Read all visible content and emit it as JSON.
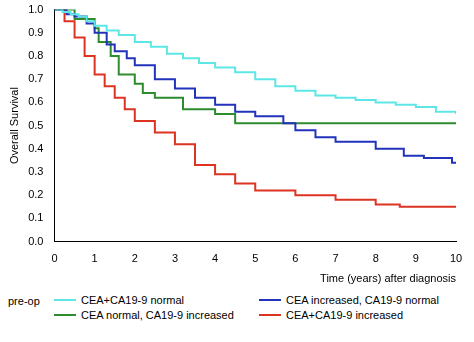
{
  "chart_data": {
    "type": "line",
    "x_label": "Time (years) after diagnosis",
    "y_label": "Overall Survival",
    "legend_title": "pre-op",
    "legend": "bottom",
    "grid": false,
    "line_style": "step",
    "xlim": [
      0,
      10
    ],
    "xticks": [
      0,
      1,
      2,
      3,
      4,
      5,
      6,
      7,
      8,
      9,
      10
    ],
    "ylim": [
      0,
      1
    ],
    "yticks": [
      {
        "value": 0,
        "label": "0.0"
      },
      0.1,
      0.2,
      0.3,
      0.4,
      0.5,
      0.6,
      0.7,
      0.8,
      0.9,
      {
        "value": 1,
        "label": "1.0"
      }
    ],
    "series": [
      {
        "name": "CEA+CA19-9 normal",
        "color": "#5ee6e6",
        "x": [
          0,
          0.2,
          0.4,
          0.6,
          0.8,
          1.0,
          1.3,
          1.6,
          2.0,
          2.4,
          2.8,
          3.2,
          3.6,
          4.0,
          4.5,
          5.0,
          5.5,
          6.0,
          6.5,
          7.0,
          7.5,
          8.0,
          8.5,
          9.0,
          9.5,
          10
        ],
        "values": [
          1,
          0.99,
          0.98,
          0.97,
          0.95,
          0.93,
          0.91,
          0.89,
          0.86,
          0.84,
          0.81,
          0.79,
          0.77,
          0.75,
          0.73,
          0.7,
          0.67,
          0.65,
          0.63,
          0.62,
          0.61,
          0.6,
          0.59,
          0.58,
          0.56,
          0.55
        ]
      },
      {
        "name": "CEA increased, CA19-9 normal",
        "color": "#2233bb",
        "x": [
          0,
          0.3,
          0.5,
          0.8,
          1.0,
          1.3,
          1.5,
          1.8,
          2.0,
          2.5,
          3.0,
          3.5,
          4.0,
          4.5,
          5.0,
          5.7,
          6.0,
          6.5,
          7.0,
          8.0,
          8.7,
          9.2,
          9.9,
          10
        ],
        "values": [
          1,
          0.98,
          0.97,
          0.94,
          0.9,
          0.85,
          0.82,
          0.79,
          0.76,
          0.7,
          0.66,
          0.62,
          0.59,
          0.56,
          0.54,
          0.51,
          0.48,
          0.45,
          0.43,
          0.4,
          0.37,
          0.36,
          0.34,
          0.34
        ]
      },
      {
        "name": "CEA normal, CA19-9 increased",
        "color": "#2e8b2e",
        "x": [
          0,
          0.5,
          1.0,
          1.1,
          1.4,
          1.6,
          2.0,
          2.2,
          2.5,
          3.2,
          4.0,
          4.5,
          10
        ],
        "values": [
          1,
          0.96,
          0.92,
          0.86,
          0.8,
          0.72,
          0.68,
          0.64,
          0.62,
          0.57,
          0.55,
          0.51,
          0.51
        ]
      },
      {
        "name": "CEA+CA19-9 increased",
        "color": "#dd3322",
        "x": [
          0,
          0.25,
          0.5,
          0.75,
          1.0,
          1.25,
          1.5,
          1.75,
          2.0,
          2.5,
          3.0,
          3.5,
          4.0,
          4.5,
          5.0,
          6.0,
          7.0,
          8.0,
          8.6,
          10
        ],
        "values": [
          1,
          0.95,
          0.88,
          0.8,
          0.72,
          0.67,
          0.62,
          0.57,
          0.52,
          0.47,
          0.42,
          0.33,
          0.29,
          0.25,
          0.22,
          0.2,
          0.18,
          0.16,
          0.15,
          0.15
        ]
      }
    ]
  }
}
